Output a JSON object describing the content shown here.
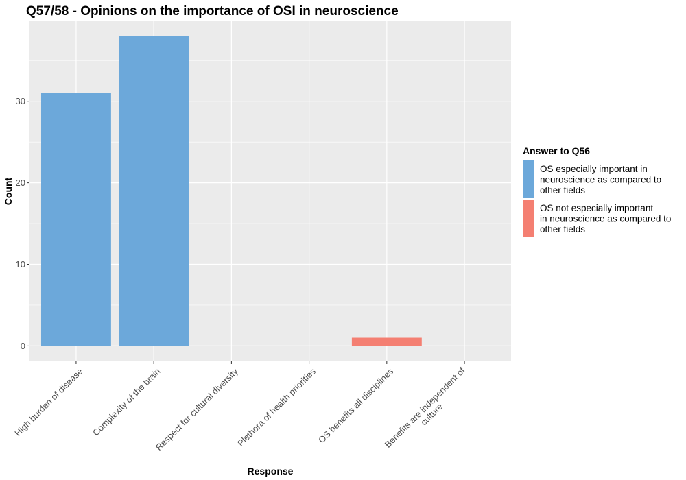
{
  "chart_data": {
    "type": "bar",
    "title": "Q57/58 - Opinions on the importance of OSI in neuroscience",
    "xlabel": "Response",
    "ylabel": "Count",
    "categories": [
      "High burden of disease",
      "Complexity of the brain",
      "Respect for cultural diversity",
      "Plethora of health priorities",
      "OS benefits all disciplines",
      "Benefits are independent of culture"
    ],
    "category_label_lines": [
      [
        "High burden of disease"
      ],
      [
        "Complexity of the brain"
      ],
      [
        "Respect for cultural diversity"
      ],
      [
        "Plethora of health priorities"
      ],
      [
        "OS benefits all disciplines"
      ],
      [
        "Benefits are independent of",
        "culture"
      ]
    ],
    "series": [
      {
        "name": "OS especially important in neuroscience as compared to other fields",
        "color": "#6ca8da",
        "values": [
          31,
          38,
          0,
          0,
          0,
          0
        ]
      },
      {
        "name": "OS not especially important in neuroscience as compared to other fields",
        "color": "#f47f72",
        "values": [
          0,
          0,
          0,
          0,
          1,
          0
        ]
      }
    ],
    "ylim": [
      -1.9,
      39.9
    ],
    "yticks": [
      0,
      10,
      20,
      30
    ],
    "grid": true,
    "panel_background": "#ebebeb",
    "legend": {
      "title": "Answer to Q56",
      "position": "right",
      "entries": [
        {
          "lines": [
            "OS especially important in",
            "neuroscience as compared to",
            "other fields"
          ],
          "color": "#6ca8da"
        },
        {
          "lines": [
            "OS not especially important",
            "in neuroscience as compared to",
            "other fields"
          ],
          "color": "#f47f72"
        }
      ]
    }
  }
}
